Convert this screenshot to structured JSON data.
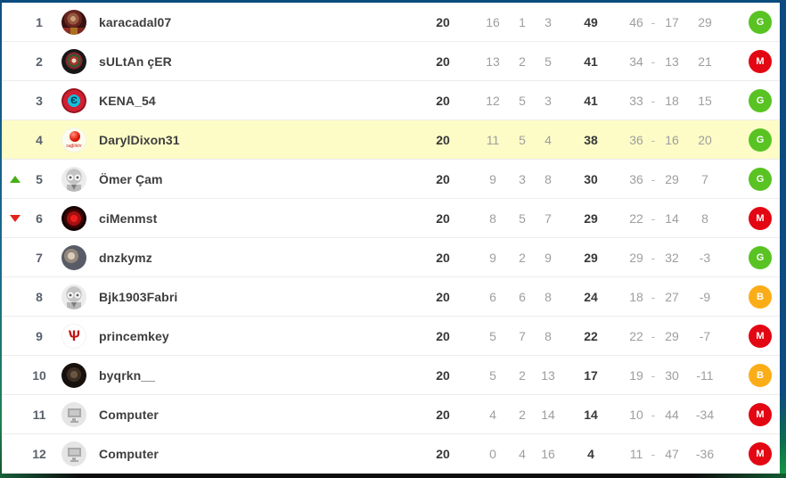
{
  "badge_colors": {
    "G": "#58c322",
    "M": "#e30613",
    "B": "#fbad18"
  },
  "arrow_colors": {
    "up": "#43b116",
    "down": "#e0261c"
  },
  "highlight_color": "#fdfcc7",
  "table": {
    "goals_separator": "-",
    "rows": [
      {
        "rank": "1",
        "change": null,
        "avatar": "karacadal",
        "name": "karacadal07",
        "played": "20",
        "wins": "16",
        "draws": "1",
        "losses": "3",
        "points": "49",
        "goals_for": "46",
        "goals_against": "17",
        "goal_diff": "29",
        "badge": "G",
        "highlighted": false
      },
      {
        "rank": "2",
        "change": null,
        "avatar": "sultan",
        "name": "sULtAn çER",
        "played": "20",
        "wins": "13",
        "draws": "2",
        "losses": "5",
        "points": "41",
        "goals_for": "34",
        "goals_against": "13",
        "goal_diff": "21",
        "badge": "M",
        "highlighted": false
      },
      {
        "rank": "3",
        "change": null,
        "avatar": "kena",
        "name": "KENA_54",
        "played": "20",
        "wins": "12",
        "draws": "5",
        "losses": "3",
        "points": "41",
        "goals_for": "33",
        "goals_against": "18",
        "goal_diff": "15",
        "badge": "G",
        "highlighted": false
      },
      {
        "rank": "4",
        "change": null,
        "avatar": "daryl",
        "name": "DarylDixon31",
        "played": "20",
        "wins": "11",
        "draws": "5",
        "losses": "4",
        "points": "38",
        "goals_for": "36",
        "goals_against": "16",
        "goal_diff": "20",
        "badge": "G",
        "highlighted": true
      },
      {
        "rank": "5",
        "change": "up",
        "avatar": "robot",
        "name": "Ömer Çam",
        "played": "20",
        "wins": "9",
        "draws": "3",
        "losses": "8",
        "points": "30",
        "goals_for": "36",
        "goals_against": "29",
        "goal_diff": "7",
        "badge": "G",
        "highlighted": false
      },
      {
        "rank": "6",
        "change": "down",
        "avatar": "cimen",
        "name": "ciMenmst",
        "played": "20",
        "wins": "8",
        "draws": "5",
        "losses": "7",
        "points": "29",
        "goals_for": "22",
        "goals_against": "14",
        "goal_diff": "8",
        "badge": "M",
        "highlighted": false
      },
      {
        "rank": "7",
        "change": null,
        "avatar": "dnz",
        "name": "dnzkymz",
        "played": "20",
        "wins": "9",
        "draws": "2",
        "losses": "9",
        "points": "29",
        "goals_for": "29",
        "goals_against": "32",
        "goal_diff": "-3",
        "badge": "G",
        "highlighted": false
      },
      {
        "rank": "8",
        "change": null,
        "avatar": "robot",
        "name": "Bjk1903Fabri",
        "played": "20",
        "wins": "6",
        "draws": "6",
        "losses": "8",
        "points": "24",
        "goals_for": "18",
        "goals_against": "27",
        "goal_diff": "-9",
        "badge": "B",
        "highlighted": false
      },
      {
        "rank": "9",
        "change": null,
        "avatar": "prince",
        "name": "princemkey",
        "played": "20",
        "wins": "5",
        "draws": "7",
        "losses": "8",
        "points": "22",
        "goals_for": "22",
        "goals_against": "29",
        "goal_diff": "-7",
        "badge": "M",
        "highlighted": false
      },
      {
        "rank": "10",
        "change": null,
        "avatar": "byqrkn",
        "name": "byqrkn__",
        "played": "20",
        "wins": "5",
        "draws": "2",
        "losses": "13",
        "points": "17",
        "goals_for": "19",
        "goals_against": "30",
        "goal_diff": "-11",
        "badge": "B",
        "highlighted": false
      },
      {
        "rank": "11",
        "change": null,
        "avatar": "computer",
        "name": "Computer",
        "played": "20",
        "wins": "4",
        "draws": "2",
        "losses": "14",
        "points": "14",
        "goals_for": "10",
        "goals_against": "44",
        "goal_diff": "-34",
        "badge": "M",
        "highlighted": false
      },
      {
        "rank": "12",
        "change": null,
        "avatar": "computer",
        "name": "Computer",
        "played": "20",
        "wins": "0",
        "draws": "4",
        "losses": "16",
        "points": "4",
        "goals_for": "11",
        "goals_against": "47",
        "goal_diff": "-36",
        "badge": "M",
        "highlighted": false
      }
    ]
  }
}
